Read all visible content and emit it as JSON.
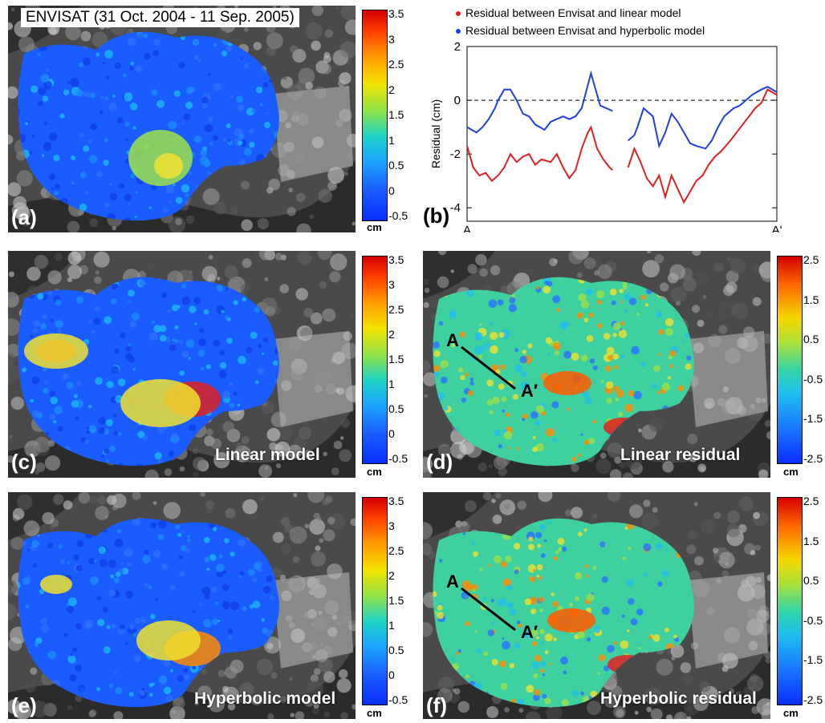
{
  "panel_a": {
    "label": "(a)",
    "title": "ENVISAT (31 Oct. 2004 - 11 Sep. 2005)",
    "colorbar": {
      "ticks": [
        "3.5",
        "3",
        "2.5",
        "2",
        "1.5",
        "1",
        "0.5",
        "0",
        "-0.5"
      ],
      "unit": "cm"
    }
  },
  "panel_b": {
    "label": "(b)",
    "legend": [
      {
        "label": "Residual between Envisat and linear model",
        "color": "#e02020"
      },
      {
        "label": "Residual between Envisat and hyperbolic model",
        "color": "#1f3fe0"
      }
    ]
  },
  "panel_c": {
    "label": "(c)",
    "caption": "Linear model",
    "colorbar": {
      "ticks": [
        "3.5",
        "3",
        "2.5",
        "2",
        "1.5",
        "1",
        "0.5",
        "0",
        "-0.5"
      ],
      "unit": "cm"
    }
  },
  "panel_d": {
    "label": "(d)",
    "caption": "Linear residual",
    "profile_start": "A",
    "profile_end": "A′",
    "colorbar": {
      "ticks": [
        "2.5",
        "1.5",
        "0.5",
        "-0.5",
        "-1.5",
        "-2.5"
      ],
      "unit": "cm"
    }
  },
  "panel_e": {
    "label": "(e)",
    "caption": "Hyperbolic model",
    "colorbar": {
      "ticks": [
        "3.5",
        "3",
        "2.5",
        "2",
        "1.5",
        "1",
        "0.5",
        "0",
        "-0.5"
      ],
      "unit": "cm"
    }
  },
  "panel_f": {
    "label": "(f)",
    "caption": "Hyperbolic residual",
    "profile_start": "A",
    "profile_end": "A′",
    "colorbar": {
      "ticks": [
        "2.5",
        "1.5",
        "0.5",
        "-0.5",
        "-1.5",
        "-2.5"
      ],
      "unit": "cm"
    }
  },
  "chart_data": {
    "type": "line",
    "ylabel": "Residual (cm)",
    "ylim": [
      -4.5,
      2
    ],
    "yticks": [
      2,
      0,
      -2,
      -4
    ],
    "x_tick_labels": [
      "A",
      "A'"
    ],
    "xlim": [
      0,
      1
    ],
    "grid": false,
    "legend_position": "top",
    "reference_line": {
      "y": 0,
      "style": "dashed"
    },
    "series": [
      {
        "name": "Residual between Envisat and hyperbolic model",
        "color": "#1f3fe0",
        "x": [
          0.0,
          0.03,
          0.05,
          0.07,
          0.09,
          0.1,
          0.12,
          0.14,
          0.16,
          0.18,
          0.2,
          0.22,
          0.25,
          0.27,
          0.29,
          0.31,
          0.33,
          0.35,
          0.37,
          0.4,
          0.42,
          0.43,
          0.45,
          0.47
        ],
        "y": [
          -1.0,
          -1.2,
          -1.0,
          -0.7,
          -0.3,
          0.0,
          0.4,
          0.4,
          0.0,
          -0.5,
          -0.6,
          -0.9,
          -1.1,
          -0.8,
          -0.7,
          -0.6,
          -0.7,
          -0.6,
          -0.3,
          1.0,
          0.2,
          -0.2,
          -0.3,
          -0.4
        ]
      },
      {
        "name": "Residual between Envisat and linear model",
        "color": "#e02020",
        "x": [
          0.0,
          0.02,
          0.04,
          0.06,
          0.08,
          0.1,
          0.12,
          0.14,
          0.16,
          0.18,
          0.2,
          0.22,
          0.24,
          0.27,
          0.29,
          0.31,
          0.33,
          0.35,
          0.37,
          0.39,
          0.4,
          0.42,
          0.44,
          0.46,
          0.47
        ],
        "y": [
          -1.7,
          -2.5,
          -2.8,
          -2.7,
          -3.0,
          -2.8,
          -2.5,
          -2.0,
          -2.3,
          -2.1,
          -2.0,
          -2.4,
          -2.2,
          -2.3,
          -2.0,
          -2.5,
          -2.9,
          -2.6,
          -1.8,
          -1.2,
          -1.0,
          -1.8,
          -2.2,
          -2.5,
          -2.6
        ]
      },
      {
        "name": "Residual between Envisat and hyperbolic model",
        "color": "#1f3fe0",
        "x": [
          0.52,
          0.54,
          0.55,
          0.57,
          0.6,
          0.62,
          0.64,
          0.66,
          0.68,
          0.7,
          0.72,
          0.74,
          0.77,
          0.79,
          0.81,
          0.83,
          0.86,
          0.88,
          0.9,
          0.92,
          0.95,
          0.97,
          1.0
        ],
        "y": [
          -1.5,
          -1.3,
          -1.0,
          -0.3,
          -0.6,
          -1.7,
          -1.2,
          -0.5,
          -0.8,
          -1.2,
          -1.6,
          -1.7,
          -1.8,
          -1.5,
          -1.0,
          -0.6,
          -0.3,
          -0.2,
          0.0,
          0.2,
          0.4,
          0.5,
          0.3
        ]
      },
      {
        "name": "Residual between Envisat and linear model",
        "color": "#e02020",
        "x": [
          0.52,
          0.54,
          0.56,
          0.58,
          0.6,
          0.62,
          0.64,
          0.66,
          0.68,
          0.7,
          0.72,
          0.74,
          0.76,
          0.78,
          0.8,
          0.82,
          0.85,
          0.87,
          0.89,
          0.91,
          0.93,
          0.95,
          0.97,
          1.0
        ],
        "y": [
          -2.5,
          -1.8,
          -2.3,
          -2.9,
          -3.2,
          -2.8,
          -3.6,
          -2.8,
          -3.3,
          -3.8,
          -3.4,
          -3.0,
          -2.8,
          -2.4,
          -2.1,
          -1.9,
          -1.5,
          -1.2,
          -0.9,
          -0.6,
          -0.3,
          -0.1,
          0.4,
          0.2
        ]
      }
    ]
  }
}
